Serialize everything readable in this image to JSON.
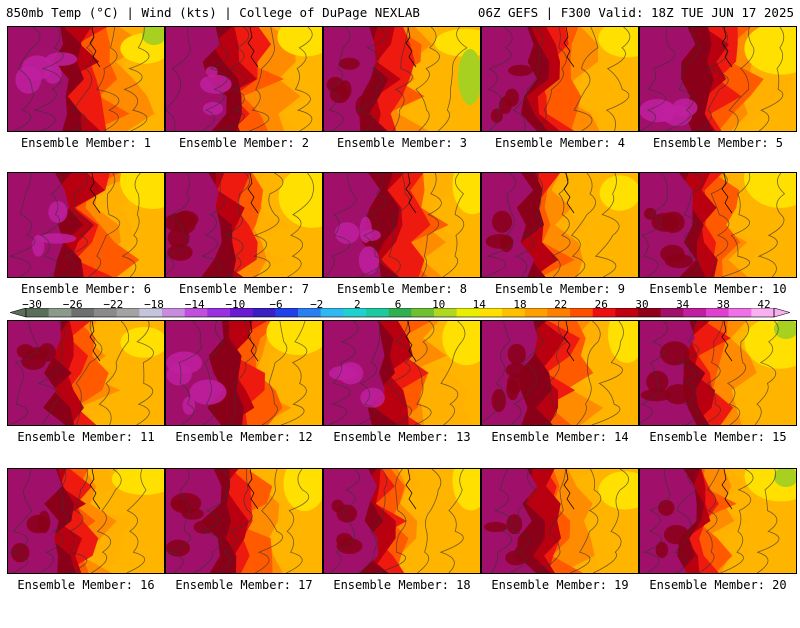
{
  "header": {
    "left": "850mb Temp (°C) | Wind (kts) | College of DuPage NEXLAB",
    "right": "06Z GEFS | F300 Valid: 18Z TUE JUN 17 2025"
  },
  "colorbar": {
    "labels": [
      "-30",
      "-26",
      "-22",
      "-18",
      "-14",
      "-10",
      "-6",
      "-2",
      "2",
      "6",
      "10",
      "14",
      "18",
      "22",
      "26",
      "30",
      "34",
      "38",
      "42"
    ],
    "colors": [
      "#5a6e5a",
      "#8c9a8c",
      "#6e7070",
      "#8a8a8a",
      "#a3a3a3",
      "#c4c4dc",
      "#c88cdc",
      "#c050dc",
      "#9b30e0",
      "#6a1ad0",
      "#3a20c0",
      "#2040e8",
      "#2a80f0",
      "#30b8f0",
      "#22d0d0",
      "#20c8a0",
      "#30b050",
      "#70c030",
      "#b0d820",
      "#e8f000",
      "#ffe000",
      "#ffc000",
      "#ffa000",
      "#ff8000",
      "#ff5000",
      "#ee1010",
      "#c00010",
      "#900018",
      "#a0106a",
      "#c020a0",
      "#e040d0",
      "#f070e8",
      "#f8b0f0"
    ]
  },
  "panels": [
    {
      "label": "Ensemble Member: 1",
      "hot": 0.85
    },
    {
      "label": "Ensemble Member: 2",
      "hot": 0.75
    },
    {
      "label": "Ensemble Member: 3",
      "hot": 0.55
    },
    {
      "label": "Ensemble Member: 4",
      "hot": 0.6
    },
    {
      "label": "Ensemble Member: 5",
      "hot": 0.8
    },
    {
      "label": "Ensemble Member: 6",
      "hot": 0.85
    },
    {
      "label": "Ensemble Member: 7",
      "hot": 0.6
    },
    {
      "label": "Ensemble Member: 8",
      "hot": 0.8
    },
    {
      "label": "Ensemble Member: 9",
      "hot": 0.5
    },
    {
      "label": "Ensemble Member: 10",
      "hot": 0.55
    },
    {
      "label": "Ensemble Member: 11",
      "hot": 0.55
    },
    {
      "label": "Ensemble Member: 12",
      "hot": 0.8
    },
    {
      "label": "Ensemble Member: 13",
      "hot": 0.75
    },
    {
      "label": "Ensemble Member: 14",
      "hot": 0.65
    },
    {
      "label": "Ensemble Member: 15",
      "hot": 0.6
    },
    {
      "label": "Ensemble Member: 16",
      "hot": 0.55
    },
    {
      "label": "Ensemble Member: 17",
      "hot": 0.6
    },
    {
      "label": "Ensemble Member: 18",
      "hot": 0.45
    },
    {
      "label": "Ensemble Member: 19",
      "hot": 0.55
    },
    {
      "label": "Ensemble Member: 20",
      "hot": 0.5
    }
  ]
}
